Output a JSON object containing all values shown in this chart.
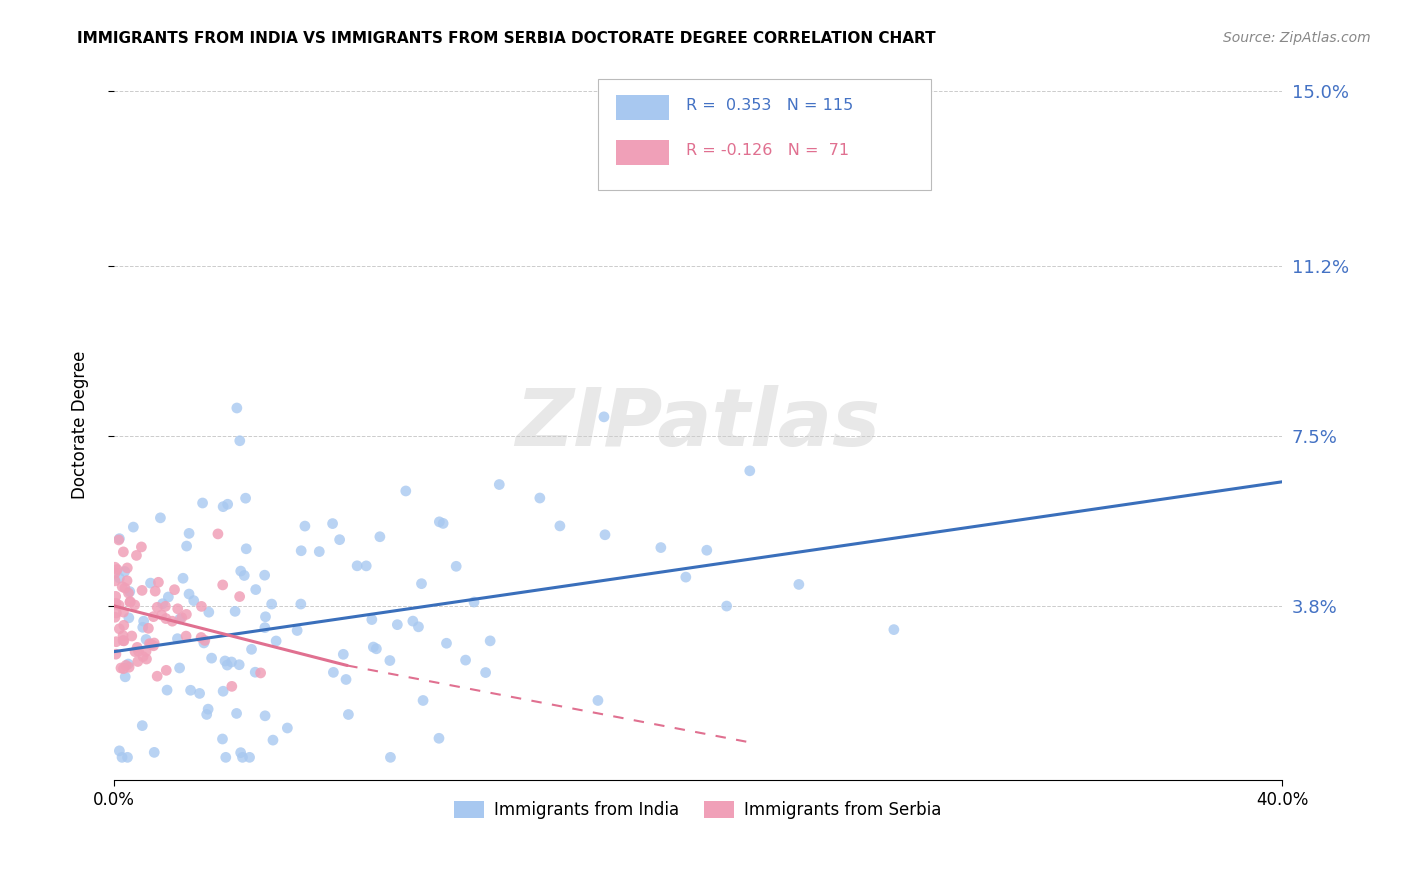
{
  "title": "IMMIGRANTS FROM INDIA VS IMMIGRANTS FROM SERBIA DOCTORATE DEGREE CORRELATION CHART",
  "source": "Source: ZipAtlas.com",
  "ylabel": "Doctorate Degree",
  "xlim": [
    0.0,
    0.4
  ],
  "ylim": [
    0.0,
    0.155
  ],
  "ytick_vals": [
    0.038,
    0.075,
    0.112,
    0.15
  ],
  "ytick_labels": [
    "3.8%",
    "7.5%",
    "11.2%",
    "15.0%"
  ],
  "color_india": "#a8c8f0",
  "color_serbia": "#f0a0b8",
  "color_line_india": "#3a6fbb",
  "color_line_serbia": "#e07090",
  "color_ytick": "#4472c4",
  "watermark": "ZIPatlas",
  "legend_india_r": "R =  0.353",
  "legend_india_n": "N = 115",
  "legend_serbia_r": "R = -0.126",
  "legend_serbia_n": "N =  71",
  "india_line_x0": 0.0,
  "india_line_x1": 0.4,
  "india_line_y0": 0.028,
  "india_line_y1": 0.065,
  "serbia_line_solid_x0": 0.0,
  "serbia_line_solid_x1": 0.08,
  "serbia_line_y0": 0.038,
  "serbia_line_y1": 0.025,
  "serbia_line_dash_x1": 0.22,
  "serbia_line_dash_y1": 0.008
}
